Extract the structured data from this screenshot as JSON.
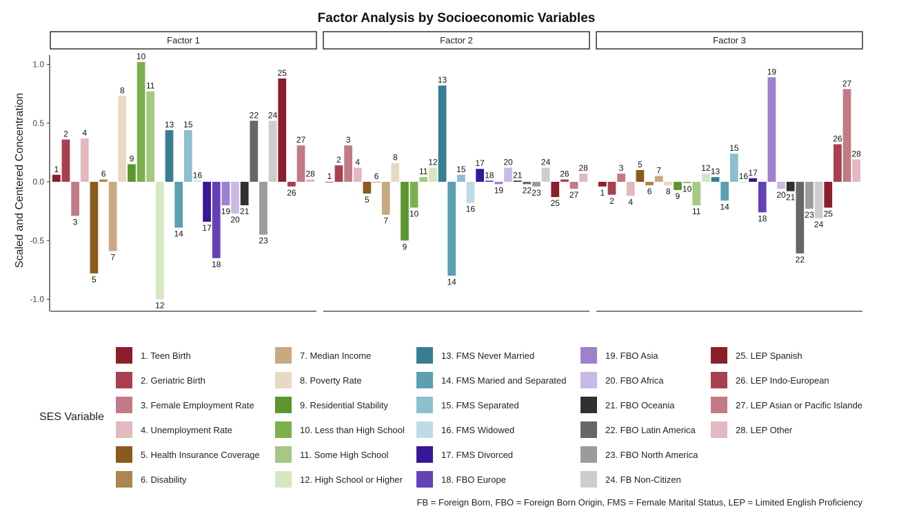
{
  "chart_data": {
    "type": "bar",
    "title": "Factor Analysis by Socioeconomic Variables",
    "ylabel": "Scaled and Centered Concentration",
    "xlabel": "",
    "ylim": [
      -1.1,
      1.05
    ],
    "yticks": [
      1.0,
      0.5,
      0.0,
      -0.5,
      -1.0
    ],
    "ytick_labels": [
      "1.0",
      "0.5",
      "0.0",
      "-0.5",
      "-1.0"
    ],
    "grid": false,
    "legend_title": "SES Variable",
    "legend_position": "bottom",
    "footnote": "FB = Foreign Born, FBO = Foreign Born Origin, FMS = Female Marital Status, LEP = Limited English Proficiency",
    "categories": [
      {
        "id": "1",
        "name": "1. Teen Birth",
        "color": "#8b1e2b"
      },
      {
        "id": "2",
        "name": "2. Geriatric Birth",
        "color": "#a8404f"
      },
      {
        "id": "3",
        "name": "3. Female Employment Rate",
        "color": "#c27b86"
      },
      {
        "id": "4",
        "name": "4. Unemployment Rate",
        "color": "#e3b8bf"
      },
      {
        "id": "5",
        "name": "5. Health Insurance Coverage",
        "color": "#8b5a1e"
      },
      {
        "id": "6",
        "name": "6. Disability",
        "color": "#ad8550"
      },
      {
        "id": "7",
        "name": "7. Median Income",
        "color": "#c9a982"
      },
      {
        "id": "8",
        "name": "8. Poverty Rate",
        "color": "#e8d9c2"
      },
      {
        "id": "9",
        "name": "9. Residential Stability",
        "color": "#5c962e"
      },
      {
        "id": "10",
        "name": "10. Less than High School",
        "color": "#7eaf4f"
      },
      {
        "id": "11",
        "name": "11. Some High School",
        "color": "#a5c884"
      },
      {
        "id": "12",
        "name": "12. High School or Higher",
        "color": "#d5e7c1"
      },
      {
        "id": "13",
        "name": "13. FMS Never Married",
        "color": "#377e93"
      },
      {
        "id": "14",
        "name": "14. FMS Maried and Separated",
        "color": "#5b9fb2"
      },
      {
        "id": "15",
        "name": "15. FMS Separated",
        "color": "#8cbfcf"
      },
      {
        "id": "16",
        "name": "16. FMS Widowed",
        "color": "#bcdde6"
      },
      {
        "id": "17",
        "name": "17. FMS Divorced",
        "color": "#37169a"
      },
      {
        "id": "18",
        "name": "18. FBO Europe",
        "color": "#6541b8"
      },
      {
        "id": "19",
        "name": "19. FBO Asia",
        "color": "#9e80d0"
      },
      {
        "id": "20",
        "name": "20. FBO Africa",
        "color": "#c9b9e6"
      },
      {
        "id": "21",
        "name": "21. FBO Oceania",
        "color": "#303030"
      },
      {
        "id": "22",
        "name": "22. FBO Latin America",
        "color": "#676767"
      },
      {
        "id": "23",
        "name": "23. FBO North America",
        "color": "#9b9b9b"
      },
      {
        "id": "24",
        "name": "24. FB Non-Citizen",
        "color": "#cdcdcd"
      },
      {
        "id": "25",
        "name": "25. LEP Spanish",
        "color": "#8b1e2b"
      },
      {
        "id": "26",
        "name": "26. LEP Indo-European",
        "color": "#a8404f"
      },
      {
        "id": "27",
        "name": "27. LEP Asian or Pacific Islande",
        "color": "#c27b86"
      },
      {
        "id": "28",
        "name": "28. LEP Other",
        "color": "#e3b8bf"
      }
    ],
    "panels": [
      {
        "name": "Factor 1",
        "values": [
          0.06,
          0.36,
          -0.29,
          0.37,
          -0.78,
          0.02,
          -0.59,
          0.73,
          0.15,
          1.02,
          0.77,
          -1.0,
          0.44,
          -0.39,
          0.44,
          0.01,
          -0.34,
          -0.65,
          -0.2,
          -0.27,
          -0.2,
          0.52,
          -0.45,
          0.52,
          0.88,
          -0.04,
          0.31,
          0.02
        ]
      },
      {
        "name": "Factor 2",
        "values": [
          0.0,
          0.14,
          0.31,
          0.12,
          -0.1,
          0.0,
          -0.28,
          0.16,
          -0.5,
          -0.22,
          0.04,
          0.12,
          0.82,
          -0.8,
          0.06,
          -0.18,
          0.11,
          0.01,
          -0.02,
          0.12,
          0.01,
          -0.02,
          -0.04,
          0.12,
          -0.13,
          0.02,
          -0.06,
          0.07
        ]
      },
      {
        "name": "Factor 3",
        "values": [
          -0.04,
          -0.11,
          0.07,
          -0.12,
          0.1,
          -0.03,
          0.05,
          -0.03,
          -0.07,
          -0.01,
          -0.2,
          0.07,
          0.04,
          -0.16,
          0.24,
          0.0,
          0.03,
          -0.26,
          0.89,
          -0.06,
          -0.08,
          -0.61,
          -0.23,
          -0.31,
          -0.22,
          0.32,
          0.79,
          0.19
        ]
      }
    ]
  }
}
